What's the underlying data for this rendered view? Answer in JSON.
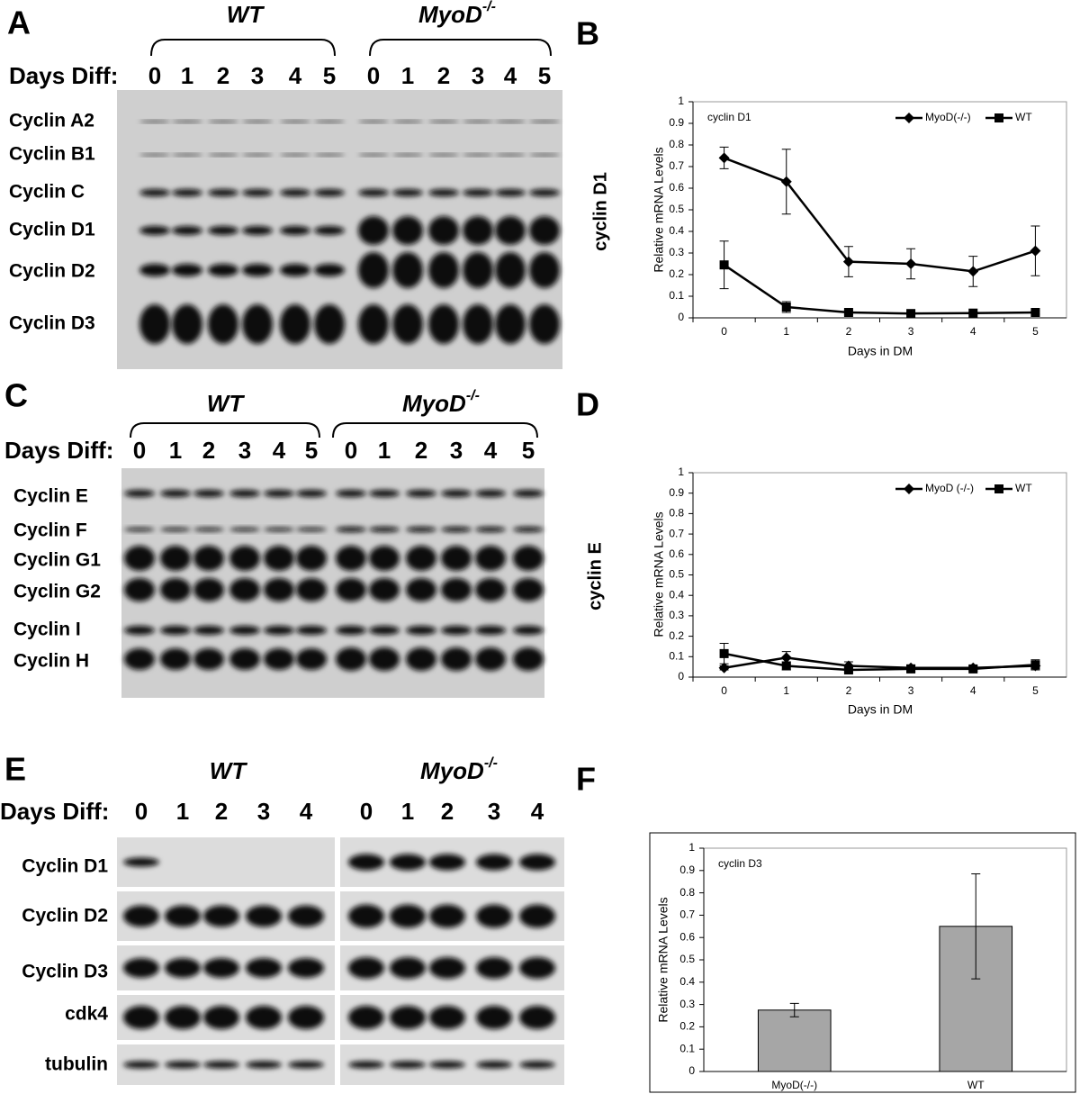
{
  "figure": {
    "panel_A": {
      "letter": "A",
      "wt_group": "WT",
      "myod_group": "MyoD",
      "myod_superscript": "-/-",
      "row_header": "Days Diff:",
      "wt_lanes": [
        "0",
        "1",
        "2",
        "3",
        "4",
        "5"
      ],
      "myod_lanes": [
        "0",
        "1",
        "2",
        "3",
        "4",
        "5"
      ],
      "rows": [
        "Cyclin A2",
        "Cyclin B1",
        "Cyclin C",
        "Cyclin D1",
        "Cyclin D2",
        "Cyclin D3"
      ]
    },
    "panel_C": {
      "letter": "C",
      "wt_group": "WT",
      "myod_group": "MyoD",
      "myod_superscript": "-/-",
      "row_header": "Days Diff:",
      "wt_lanes": [
        "0",
        "1",
        "2",
        "3",
        "4",
        "5"
      ],
      "myod_lanes": [
        "0",
        "1",
        "2",
        "3",
        "4",
        "5"
      ],
      "rows": [
        "Cyclin E",
        "Cyclin F",
        "Cyclin G1",
        "Cyclin G2",
        "Cyclin I",
        "Cyclin H"
      ]
    },
    "panel_E": {
      "letter": "E",
      "wt_group": "WT",
      "myod_group": "MyoD",
      "myod_superscript": "-/-",
      "row_header": "Days Diff:",
      "wt_lanes": [
        "0",
        "1",
        "2",
        "3",
        "4"
      ],
      "myod_lanes": [
        "0",
        "1",
        "2",
        "3",
        "4"
      ],
      "rows": [
        "Cyclin D1",
        "Cyclin D2",
        "Cyclin D3",
        "cdk4",
        "tubulin"
      ]
    }
  },
  "chart_data": [
    {
      "type": "line",
      "panel_letter": "B",
      "side_label": "cyclin D1",
      "title": "cyclin D1",
      "x_label": "Days in DM",
      "y_label": "Relative mRNA Levels",
      "categories": [
        "0",
        "1",
        "2",
        "3",
        "4",
        "5"
      ],
      "ylim": [
        0,
        1
      ],
      "yticks": [
        0,
        0.1,
        0.2,
        0.3,
        0.4,
        0.5,
        0.6,
        0.7,
        0.8,
        0.9,
        1
      ],
      "legend": "upper right",
      "series": [
        {
          "name": "MyoD(-/-)",
          "color": "#000000",
          "marker": "diamond",
          "values": [
            0.74,
            0.63,
            0.26,
            0.25,
            0.215,
            0.31
          ],
          "errors": [
            0.05,
            0.15,
            0.07,
            0.07,
            0.07,
            0.115
          ]
        },
        {
          "name": "WT",
          "color": "#000000",
          "marker": "square",
          "values": [
            0.245,
            0.05,
            0.025,
            0.02,
            0.022,
            0.025
          ],
          "errors": [
            0.11,
            0.025,
            0.01,
            0.005,
            0.005,
            0.008
          ]
        }
      ]
    },
    {
      "type": "line",
      "panel_letter": "D",
      "side_label": "cyclin E",
      "x_label": "Days in DM",
      "y_label": "Relative mRNA Levels",
      "categories": [
        "0",
        "1",
        "2",
        "3",
        "4",
        "5"
      ],
      "ylim": [
        0,
        1
      ],
      "yticks": [
        0,
        0.1,
        0.2,
        0.3,
        0.4,
        0.5,
        0.6,
        0.7,
        0.8,
        0.9,
        1
      ],
      "legend": "upper right",
      "series": [
        {
          "name": "MyoD (-/-)",
          "color": "#000000",
          "marker": "diamond",
          "values": [
            0.045,
            0.095,
            0.055,
            0.045,
            0.045,
            0.055
          ],
          "errors": [
            0.01,
            0.03,
            0.02,
            0.015,
            0.01,
            0.02
          ]
        },
        {
          "name": "WT",
          "color": "#000000",
          "marker": "square",
          "values": [
            0.115,
            0.055,
            0.035,
            0.04,
            0.04,
            0.06
          ],
          "errors": [
            0.05,
            0.02,
            0.01,
            0.015,
            0.01,
            0.025
          ]
        }
      ]
    },
    {
      "type": "bar",
      "panel_letter": "F",
      "title": "cyclin D3",
      "y_label": "Relative mRNA Levels",
      "categories": [
        "MyoD(-/-)",
        "WT"
      ],
      "values": [
        0.275,
        0.65
      ],
      "errors": [
        0.03,
        0.235
      ],
      "color": "#a6a6a6",
      "ylim": [
        0,
        1
      ],
      "yticks": [
        0,
        0.1,
        0.2,
        0.3,
        0.4,
        0.5,
        0.6,
        0.7,
        0.8,
        0.9,
        1
      ]
    }
  ]
}
